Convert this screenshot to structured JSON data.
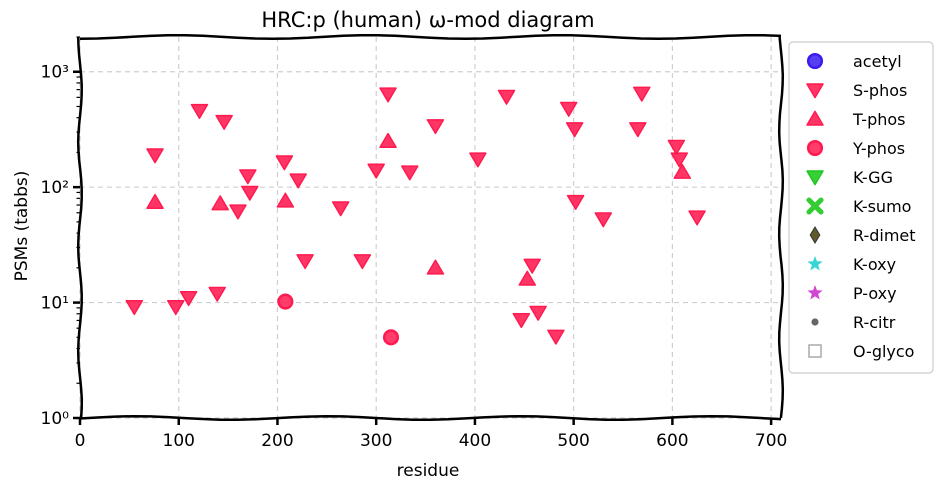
{
  "chart_data": {
    "type": "scatter",
    "title": "HRC:p (human) ω-mod diagram",
    "xlabel": "residue",
    "ylabel": "PSMs (tabbs)",
    "xlim": [
      0,
      710
    ],
    "ylim": [
      1,
      2000
    ],
    "yscale": "log",
    "x_ticks": [
      0,
      100,
      200,
      300,
      400,
      500,
      600,
      700
    ],
    "y_ticks": [
      {
        "value": 1,
        "label": "10⁰"
      },
      {
        "value": 10,
        "label": "10¹"
      },
      {
        "value": 100,
        "label": "10²"
      },
      {
        "value": 1000,
        "label": "10³"
      }
    ],
    "grid": true,
    "legend_placement": "outside right",
    "series": [
      {
        "name": "acetyl",
        "marker": "circle",
        "color": "#3b1cf0",
        "points": []
      },
      {
        "name": "S-phos",
        "marker": "triangle-down",
        "color": "#ff1a50",
        "points": [
          {
            "x": 55,
            "y": 9.2
          },
          {
            "x": 76,
            "y": 190
          },
          {
            "x": 97,
            "y": 9.2
          },
          {
            "x": 110,
            "y": 11
          },
          {
            "x": 121,
            "y": 460
          },
          {
            "x": 139,
            "y": 12
          },
          {
            "x": 146,
            "y": 370
          },
          {
            "x": 160,
            "y": 62
          },
          {
            "x": 170,
            "y": 125
          },
          {
            "x": 172,
            "y": 90
          },
          {
            "x": 207,
            "y": 165
          },
          {
            "x": 221,
            "y": 115
          },
          {
            "x": 228,
            "y": 23
          },
          {
            "x": 264,
            "y": 66
          },
          {
            "x": 286,
            "y": 23
          },
          {
            "x": 300,
            "y": 140
          },
          {
            "x": 312,
            "y": 640
          },
          {
            "x": 334,
            "y": 135
          },
          {
            "x": 360,
            "y": 340
          },
          {
            "x": 403,
            "y": 175
          },
          {
            "x": 432,
            "y": 610
          },
          {
            "x": 447,
            "y": 7.1
          },
          {
            "x": 458,
            "y": 21
          },
          {
            "x": 464,
            "y": 8.2
          },
          {
            "x": 482,
            "y": 5.1
          },
          {
            "x": 495,
            "y": 480
          },
          {
            "x": 501,
            "y": 320
          },
          {
            "x": 502,
            "y": 75
          },
          {
            "x": 530,
            "y": 53
          },
          {
            "x": 565,
            "y": 320
          },
          {
            "x": 569,
            "y": 650
          },
          {
            "x": 604,
            "y": 225
          },
          {
            "x": 607,
            "y": 175
          },
          {
            "x": 625,
            "y": 55
          }
        ]
      },
      {
        "name": "T-phos",
        "marker": "triangle-up",
        "color": "#ff1a50",
        "points": [
          {
            "x": 76,
            "y": 74
          },
          {
            "x": 142,
            "y": 72
          },
          {
            "x": 208,
            "y": 76
          },
          {
            "x": 312,
            "y": 250
          },
          {
            "x": 360,
            "y": 20
          },
          {
            "x": 453,
            "y": 16
          },
          {
            "x": 610,
            "y": 135
          }
        ]
      },
      {
        "name": "Y-phos",
        "marker": "circle",
        "color": "#ff1a50",
        "points": [
          {
            "x": 208,
            "y": 10.2
          },
          {
            "x": 315,
            "y": 5.0
          }
        ]
      },
      {
        "name": "K-GG",
        "marker": "triangle-down",
        "color": "#1ec81e",
        "points": []
      },
      {
        "name": "K-sumo",
        "marker": "x-cross",
        "color": "#33cc33",
        "points": []
      },
      {
        "name": "R-dimet",
        "marker": "diamond",
        "color": "#5f5a2a",
        "points": []
      },
      {
        "name": "K-oxy",
        "marker": "star",
        "color": "#22d0d0",
        "points": []
      },
      {
        "name": "P-oxy",
        "marker": "star",
        "color": "#cc33cc",
        "points": []
      },
      {
        "name": "R-citr",
        "marker": "dot",
        "color": "#666666",
        "points": []
      },
      {
        "name": "O-glyco",
        "marker": "square-open",
        "color": "#aaaaaa",
        "points": []
      }
    ]
  }
}
